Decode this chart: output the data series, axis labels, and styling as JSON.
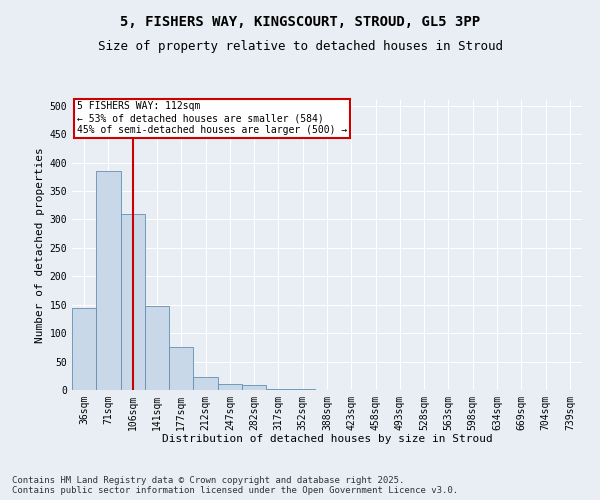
{
  "title_line1": "5, FISHERS WAY, KINGSCOURT, STROUD, GL5 3PP",
  "title_line2": "Size of property relative to detached houses in Stroud",
  "xlabel": "Distribution of detached houses by size in Stroud",
  "ylabel": "Number of detached properties",
  "bar_values": [
    145,
    385,
    310,
    148,
    75,
    22,
    10,
    8,
    2,
    1,
    0,
    0,
    0,
    0,
    0,
    0,
    0,
    0,
    0,
    0,
    0
  ],
  "bar_labels": [
    "36sqm",
    "71sqm",
    "106sqm",
    "141sqm",
    "177sqm",
    "212sqm",
    "247sqm",
    "282sqm",
    "317sqm",
    "352sqm",
    "388sqm",
    "423sqm",
    "458sqm",
    "493sqm",
    "528sqm",
    "563sqm",
    "598sqm",
    "634sqm",
    "669sqm",
    "704sqm",
    "739sqm"
  ],
  "bar_color": "#c8d8e8",
  "bar_edge_color": "#6090b0",
  "red_line_x": 2.5,
  "annotation_text_line1": "5 FISHERS WAY: 112sqm",
  "annotation_text_line2": "← 53% of detached houses are smaller (584)",
  "annotation_text_line3": "45% of semi-detached houses are larger (500) →",
  "annotation_box_color": "#ffffff",
  "annotation_border_color": "#cc0000",
  "ylim": [
    0,
    510
  ],
  "yticks": [
    0,
    50,
    100,
    150,
    200,
    250,
    300,
    350,
    400,
    450,
    500
  ],
  "background_color": "#e8eef4",
  "plot_bg_color": "#e8eef4",
  "footnote": "Contains HM Land Registry data © Crown copyright and database right 2025.\nContains public sector information licensed under the Open Government Licence v3.0.",
  "title_fontsize": 10,
  "subtitle_fontsize": 9,
  "axis_label_fontsize": 8,
  "tick_fontsize": 7,
  "annotation_fontsize": 7,
  "footnote_fontsize": 6.5
}
